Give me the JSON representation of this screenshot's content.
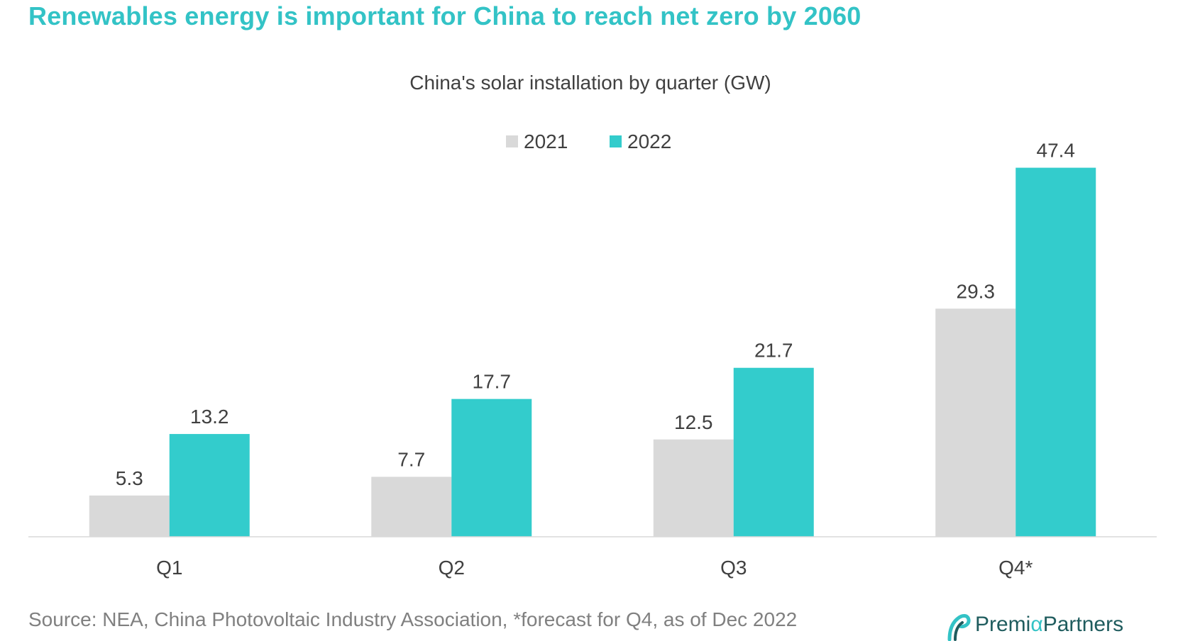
{
  "page_title": "Renewables energy is important for China to reach net zero by 2060",
  "source_note": "Source: NEA, China Photovoltaic Industry Association, *forecast for Q4, as of Dec 2022",
  "logo": {
    "prefix": "Premi",
    "alpha": "α",
    "suffix": "Partners"
  },
  "colors": {
    "series_2021": "#D9D9D9",
    "series_2022": "#33CCCC",
    "title": "#33C3C6",
    "text": "#404040",
    "axis": "#D9D9D9"
  },
  "chart_data": {
    "type": "bar",
    "title": "China's solar installation by quarter (GW)",
    "xlabel": "",
    "ylabel": "",
    "categories": [
      "Q1",
      "Q2",
      "Q3",
      "Q4*"
    ],
    "series": [
      {
        "name": "2021",
        "values": [
          5.3,
          7.7,
          12.5,
          29.3
        ],
        "color": "#D9D9D9"
      },
      {
        "name": "2022",
        "values": [
          13.2,
          17.7,
          21.7,
          47.4
        ],
        "color": "#33CCCC"
      }
    ],
    "ylim": [
      0,
      50
    ],
    "grid": false,
    "legend_position": "top-center",
    "data_labels": true
  }
}
